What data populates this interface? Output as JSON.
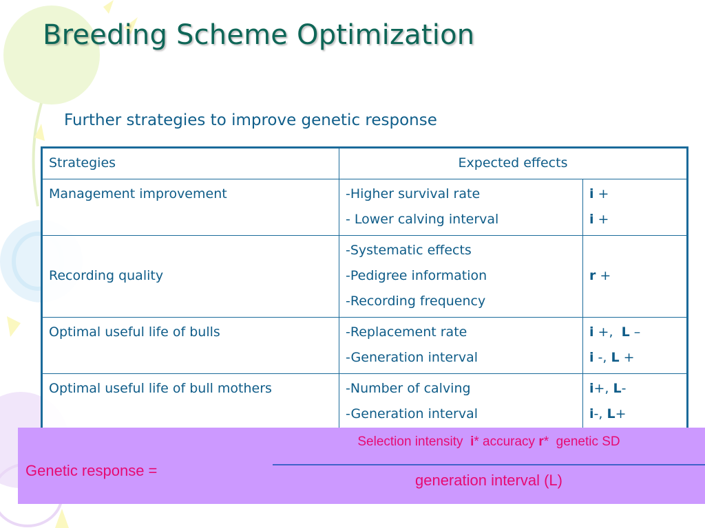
{
  "slide": {
    "title": "Breeding Scheme Optimization",
    "subtitle": "Further strategies to improve genetic response"
  },
  "table": {
    "headers": {
      "strategies": "Strategies",
      "expected_effects": "Expected effects"
    },
    "rows": [
      {
        "strategy": "Management improvement",
        "effects": [
          "-Higher survival rate",
          "- Lower calving interval"
        ],
        "impacts": [
          [
            {
              "t": "i",
              "b": true
            },
            {
              "t": " +",
              "b": false
            }
          ],
          [
            {
              "t": "i",
              "b": true
            },
            {
              "t": " +",
              "b": false
            }
          ]
        ]
      },
      {
        "strategy": "Recording quality",
        "effects": [
          "-Systematic effects",
          "-Pedigree information",
          "-Recording frequency"
        ],
        "impacts": [
          [
            {
              "t": "r",
              "b": true
            },
            {
              "t": " +",
              "b": false
            }
          ]
        ]
      },
      {
        "strategy": "Optimal useful life of bulls",
        "effects": [
          "-Replacement rate",
          "-Generation interval"
        ],
        "impacts": [
          [
            {
              "t": "i",
              "b": true
            },
            {
              "t": " +,  ",
              "b": false
            },
            {
              "t": "L",
              "b": true
            },
            {
              "t": " –",
              "b": false
            }
          ],
          [
            {
              "t": "i",
              "b": true
            },
            {
              "t": " -, ",
              "b": false
            },
            {
              "t": "L",
              "b": true
            },
            {
              "t": " +",
              "b": false
            }
          ]
        ]
      },
      {
        "strategy": "Optimal useful life of bull mothers",
        "effects": [
          "-Number of calving",
          "-Generation interval"
        ],
        "impacts": [
          [
            {
              "t": "i",
              "b": true
            },
            {
              "t": "+, ",
              "b": false
            },
            {
              "t": "L",
              "b": true
            },
            {
              "t": "-",
              "b": false
            }
          ],
          [
            {
              "t": "i",
              "b": true
            },
            {
              "t": "-, ",
              "b": false
            },
            {
              "t": "L",
              "b": true
            },
            {
              "t": "+",
              "b": false
            }
          ]
        ]
      }
    ]
  },
  "formula": {
    "lhs": "Genetic response =",
    "numerator": [
      {
        "t": "Selection intensity  ",
        "b": false
      },
      {
        "t": "i",
        "b": true
      },
      {
        "t": "* accuracy ",
        "b": false
      },
      {
        "t": "r",
        "b": true
      },
      {
        "t": "*  genetic SD",
        "b": false
      }
    ],
    "denominator": "generation interval (L)"
  },
  "colors": {
    "title": "#0e6657",
    "text": "#0f5c88",
    "table_border": "#1a6a9a",
    "formula_bg": "#cc99ff",
    "formula_text": "#e60b73",
    "fraction_bar": "#3f62c8"
  }
}
